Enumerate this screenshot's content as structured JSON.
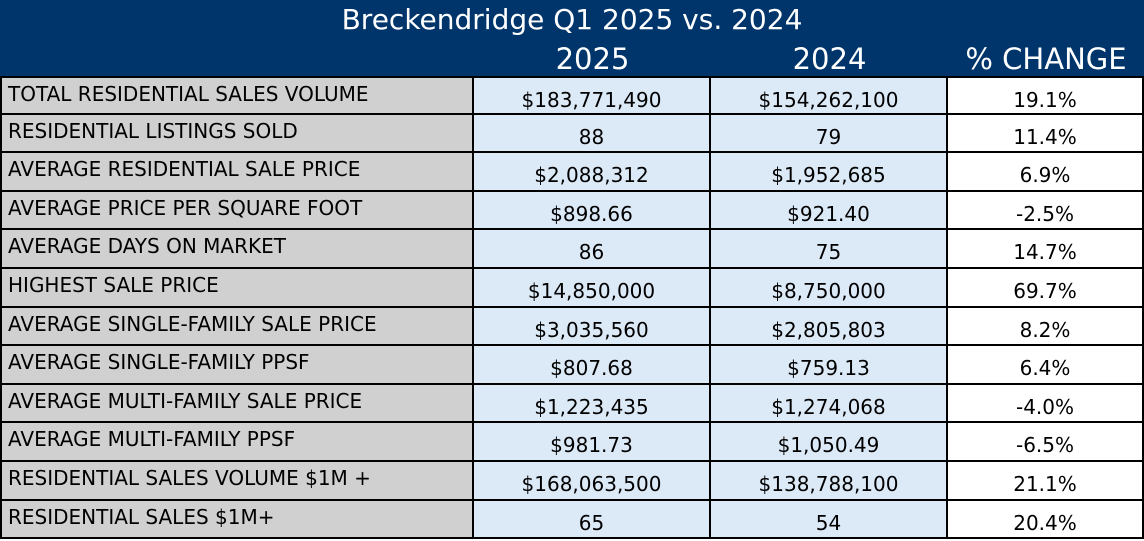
{
  "chart_data": {
    "type": "table",
    "title": "Breckendridge Q1 2025 vs. 2024",
    "columns": [
      "",
      "2025",
      "2024",
      "% CHANGE"
    ],
    "rows": [
      {
        "label": "TOTAL RESIDENTIAL SALES VOLUME",
        "v2025": "$183,771,490",
        "v2024": "$154,262,100",
        "change": "19.1%"
      },
      {
        "label": "RESIDENTIAL LISTINGS SOLD",
        "v2025": "88",
        "v2024": "79",
        "change": "11.4%"
      },
      {
        "label": "AVERAGE RESIDENTIAL SALE PRICE",
        "v2025": "$2,088,312",
        "v2024": "$1,952,685",
        "change": "6.9%"
      },
      {
        "label": "AVERAGE PRICE PER SQUARE FOOT",
        "v2025": "$898.66",
        "v2024": "$921.40",
        "change": "-2.5%"
      },
      {
        "label": "AVERAGE DAYS ON MARKET",
        "v2025": "86",
        "v2024": "75",
        "change": "14.7%"
      },
      {
        "label": "HIGHEST SALE PRICE",
        "v2025": "$14,850,000",
        "v2024": "$8,750,000",
        "change": "69.7%"
      },
      {
        "label": "AVERAGE SINGLE-FAMILY SALE PRICE",
        "v2025": "$3,035,560",
        "v2024": "$2,805,803",
        "change": "8.2%"
      },
      {
        "label": "AVERAGE SINGLE-FAMILY PPSF",
        "v2025": "$807.68",
        "v2024": "$759.13",
        "change": "6.4%"
      },
      {
        "label": "AVERAGE MULTI-FAMILY SALE PRICE",
        "v2025": "$1,223,435",
        "v2024": "$1,274,068",
        "change": "-4.0%"
      },
      {
        "label": "AVERAGE MULTI-FAMILY PPSF",
        "v2025": "$981.73",
        "v2024": "$1,050.49",
        "change": "-6.5%"
      },
      {
        "label": "RESIDENTIAL SALES VOLUME $1M +",
        "v2025": "$168,063,500",
        "v2024": "$138,788,100",
        "change": "21.1%"
      },
      {
        "label": "RESIDENTIAL SALES $1M+",
        "v2025": "65",
        "v2024": "54",
        "change": "20.4%"
      }
    ],
    "colors": {
      "header_bg": "#00356b",
      "header_text": "#ffffff",
      "label_bg": "#d0d0d0",
      "year_bg": "#dce9f7",
      "change_bg": "#ffffff"
    }
  }
}
